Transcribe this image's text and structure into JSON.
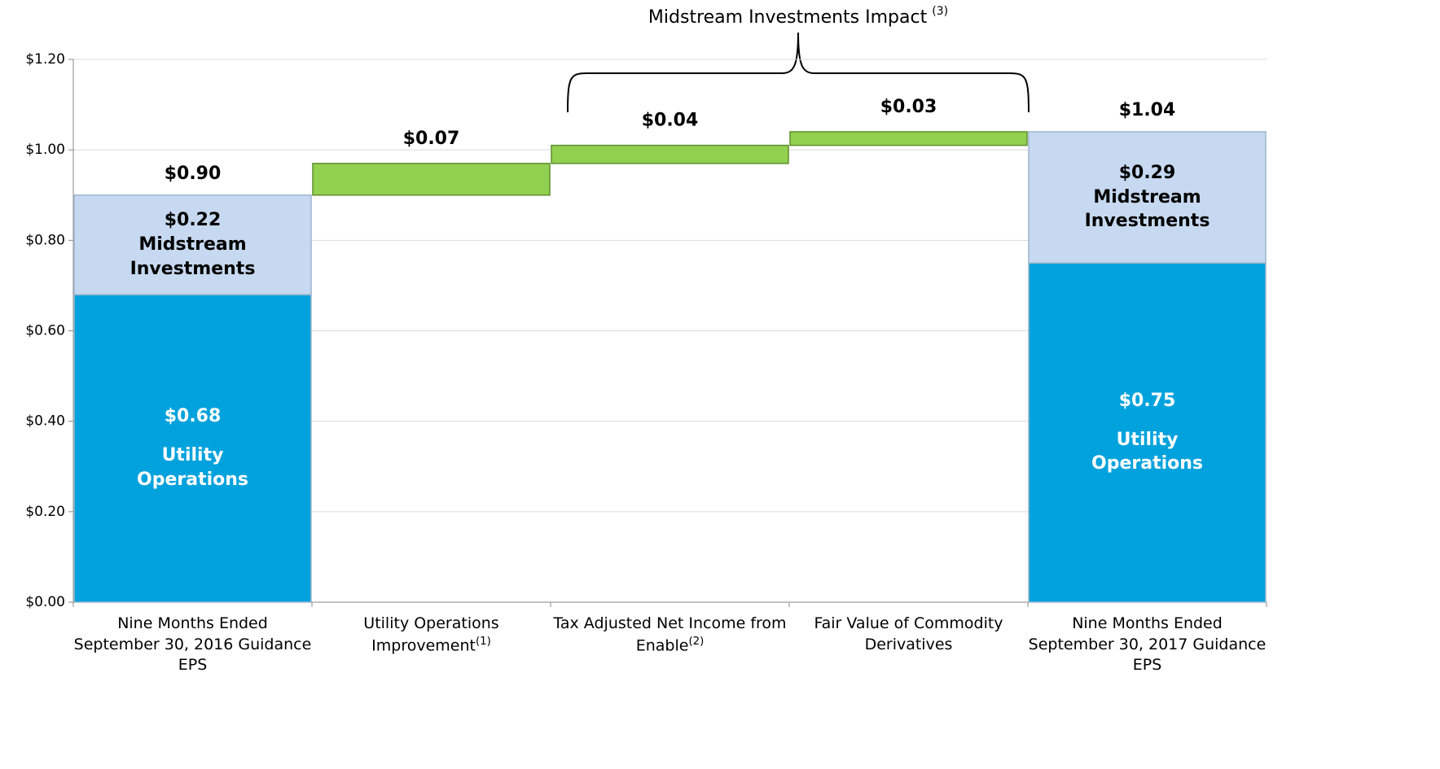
{
  "chart_data": {
    "type": "waterfall",
    "annotation": {
      "text": "Midstream Investments Impact",
      "note": "(3)"
    },
    "categories": [
      "Nine Months Ended September 30, 2016 Guidance EPS",
      "Utility Operations Improvement",
      "Tax Adjusted Net Income from Enable",
      "Fair Value of Commodity Derivatives",
      "Nine Months Ended September 30, 2017 Guidance EPS"
    ],
    "category_notes": [
      null,
      "(1)",
      "(2)",
      null,
      null
    ],
    "series": [
      {
        "name": "Utility Operations",
        "color": "#00a2dd",
        "text_color": "#ffffff",
        "values": [
          0.68,
          null,
          null,
          null,
          0.75
        ],
        "value_labels": [
          "$0.68",
          null,
          null,
          null,
          "$0.75"
        ]
      },
      {
        "name": "Midstream Investments",
        "color": "#c6d9f0",
        "text_color": "#000000",
        "values": [
          0.22,
          null,
          null,
          null,
          0.29
        ],
        "value_labels": [
          "$0.22",
          null,
          null,
          null,
          "$0.29"
        ]
      }
    ],
    "changes": {
      "color": "#92d050",
      "values": [
        null,
        0.07,
        0.04,
        0.03,
        null
      ],
      "value_labels": [
        null,
        "$0.07",
        "$0.04",
        "$0.03",
        null
      ]
    },
    "totals": {
      "values": [
        0.9,
        null,
        null,
        null,
        1.04
      ],
      "value_labels": [
        "$0.90",
        null,
        null,
        null,
        "$1.04"
      ]
    },
    "ylim": [
      0,
      1.2
    ],
    "yticks": [
      {
        "value": 0,
        "label": "$0.00"
      },
      {
        "value": 0.2,
        "label": "$0.20"
      },
      {
        "value": 0.4,
        "label": "$0.40"
      },
      {
        "value": 0.6,
        "label": "$0.60"
      },
      {
        "value": 0.8,
        "label": "$0.80"
      },
      {
        "value": 1.0,
        "label": "$1.00"
      },
      {
        "value": 1.2,
        "label": "$1.20"
      }
    ],
    "grid": true
  }
}
